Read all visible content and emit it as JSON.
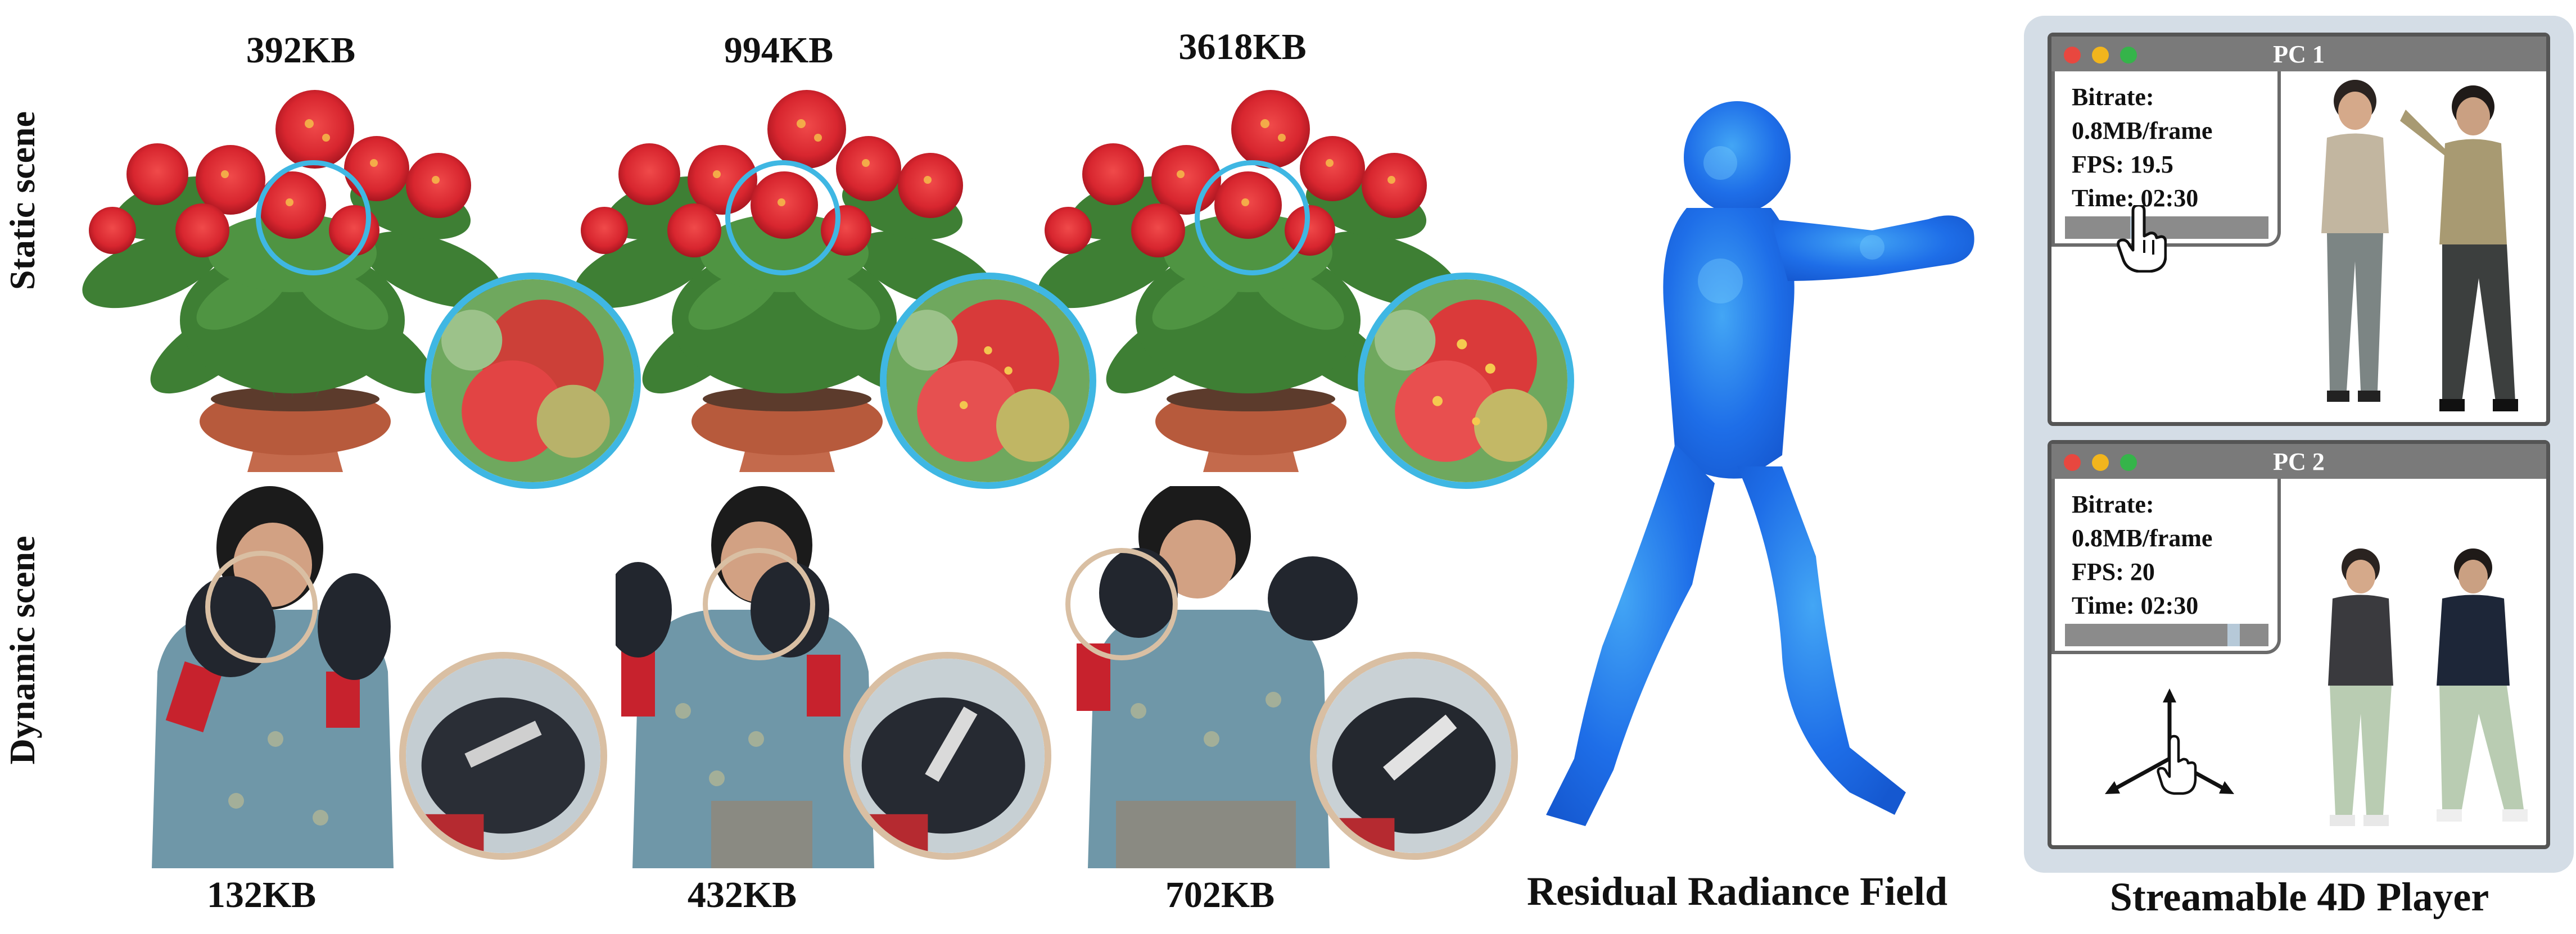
{
  "sizes": {
    "static": [
      "392KB",
      "994KB",
      "3618KB"
    ],
    "dynamic": [
      "132KB",
      "432KB",
      "702KB"
    ]
  },
  "rows": {
    "static": "Static scene",
    "dynamic": "Dynamic scene"
  },
  "captions": {
    "residual": "Residual Radiance Field",
    "player": "Streamable 4D Player"
  },
  "windows": [
    {
      "title": "PC 1",
      "bitrate_label": "Bitrate:",
      "bitrate_value": "0.8MB/frame",
      "fps": "FPS: 19.5",
      "time": "Time:  02:30",
      "progress": 0.34
    },
    {
      "title": "PC 2",
      "bitrate_label": "Bitrate:",
      "bitrate_value": "0.8MB/frame",
      "fps": "FPS: 20",
      "time": "Time:  02:30",
      "progress": 0.85
    }
  ],
  "colors": {
    "static_highlight": "#3fb7e3",
    "dynamic_highlight": "#d9bfa3",
    "point_cloud": "#1e6ee8",
    "window_titlebar": "#7a7a7a",
    "panel_bg": "#d4dde6",
    "traffic_red": "#e8473f",
    "traffic_yellow": "#f2b51d",
    "traffic_green": "#35b44a"
  },
  "icons": [
    "hand-pointer-icon",
    "axes-gizmo-icon"
  ]
}
